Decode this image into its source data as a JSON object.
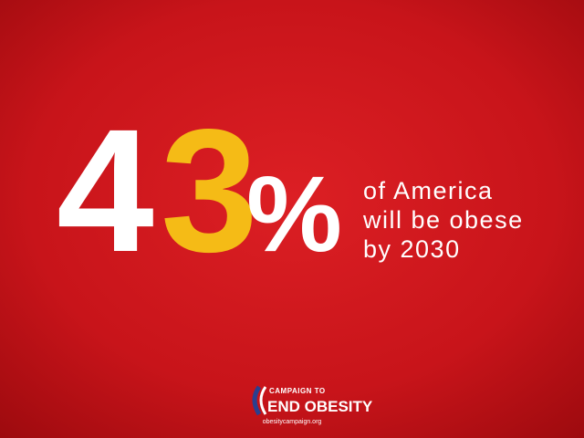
{
  "headline": {
    "digit_one": "4",
    "digit_two": "3",
    "percent": "%"
  },
  "statement": {
    "lines": [
      "of America",
      "will be obese",
      "by 2030"
    ]
  },
  "logo": {
    "line1": "CAMPAIGN TO",
    "line2": "END OBESITY",
    "url": "obesitycampaign.org"
  }
}
